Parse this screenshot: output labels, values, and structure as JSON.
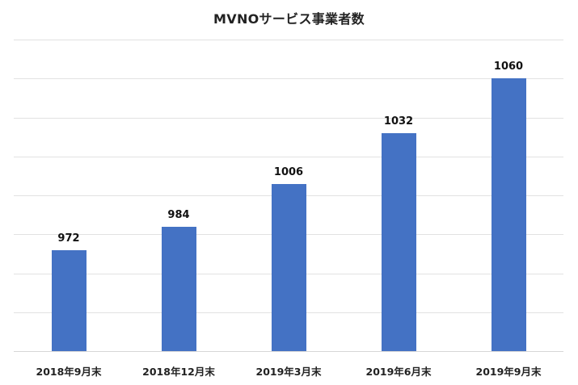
{
  "chart_data": {
    "type": "bar",
    "title": "MVNOサービス事業者数",
    "categories": [
      "2018年9月末",
      "2018年12月末",
      "2019年3月末",
      "2019年6月末",
      "2019年9月末"
    ],
    "values": [
      972,
      984,
      1006,
      1032,
      1060
    ],
    "series": [
      {
        "name": "MVNOサービス事業者数",
        "values": [
          972,
          984,
          1006,
          1032,
          1060
        ],
        "color": "#4472C4"
      }
    ],
    "xlabel": "",
    "ylabel": "",
    "ylim": [
      920,
      1080
    ],
    "y_tick_step": 20,
    "y_axis_labels_visible": false,
    "grid": true,
    "legend": "none",
    "data_labels": true
  },
  "style": {
    "bar_color": "#4472C4",
    "grid_color": "#e2e2e2"
  }
}
